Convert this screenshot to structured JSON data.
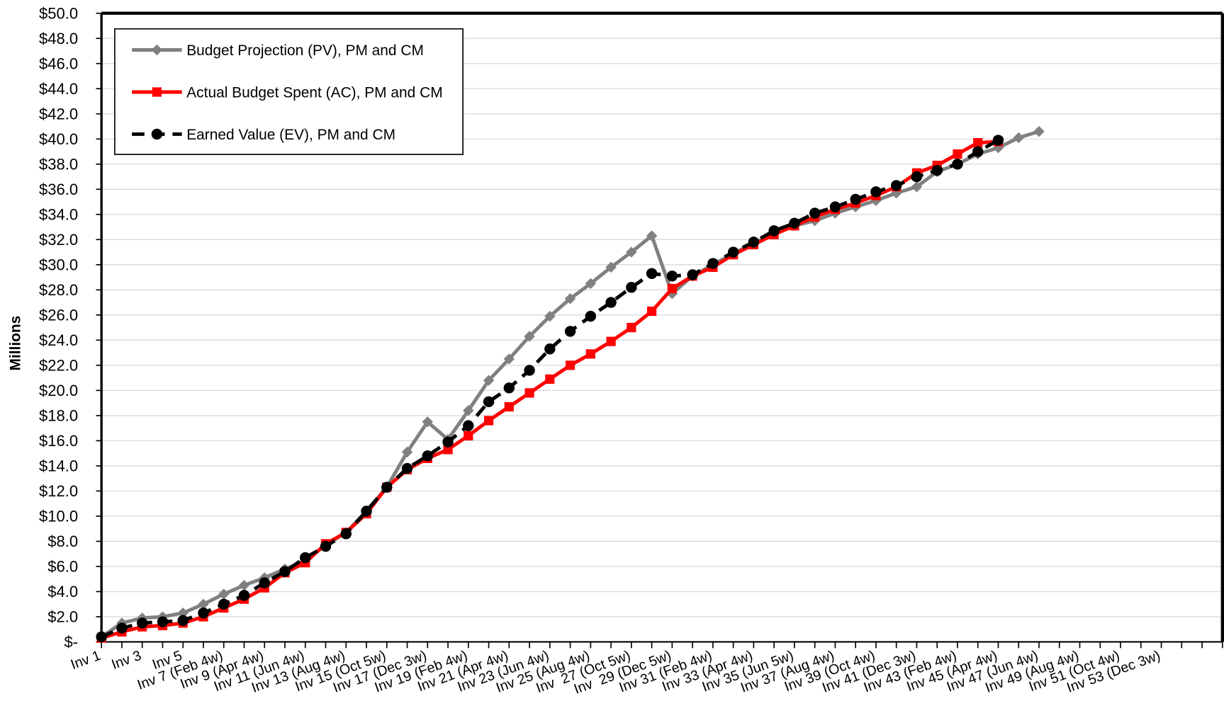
{
  "chart_data": {
    "type": "line",
    "y_label": "Millions",
    "categories": [
      "Inv 1",
      null,
      "Inv 3",
      null,
      "Inv 5",
      null,
      "Inv 7 (Feb 4w)",
      null,
      "Inv 9 (Apr 4w)",
      null,
      "Inv 11 (Jun 4w)",
      null,
      "Inv 13 (Aug 4w)",
      null,
      "Inv 15 (Oct 5w)",
      null,
      "Inv 17 (Dec 3w)",
      null,
      "Inv 19 (Feb 4w)",
      null,
      "Inv 21 (Apr 4w)",
      null,
      "Inv 23 (Jun 4w)",
      null,
      "Inv 25 (Aug 4w)",
      null,
      "Inv  27 (Oct 5w)",
      null,
      "Inv  29 (Dec 5w)",
      null,
      "Inv 31 (Feb 4w)",
      null,
      "Inv 33 (Apr 4w)",
      null,
      "Inv 35 (Jun 5w)",
      null,
      "Inv 37 (Aug 4w)",
      null,
      "Inv 39 (Oct 4w)",
      null,
      "Inv 41 (Dec 3w)",
      null,
      "Inv 43 (Feb 4w)",
      null,
      "Inv 45 (Apr 4w)",
      null,
      "Inv 47 (Jun 4w)",
      null,
      "Inv 49 (Aug 4w)",
      null,
      "Inv 51 (Oct 4w)",
      null,
      "Inv 53 (Dec 3w)",
      null,
      null,
      null
    ],
    "series": [
      {
        "name": "Budget Projection (PV), PM and CM",
        "color": "#808080",
        "marker": "diamond",
        "dash": false,
        "values": [
          0.4,
          1.5,
          1.9,
          2.0,
          2.3,
          3.0,
          3.8,
          4.5,
          5.1,
          5.8,
          6.4,
          7.7,
          8.7,
          10.4,
          12.3,
          15.1,
          17.5,
          16.1,
          18.4,
          20.8,
          22.5,
          24.3,
          25.9,
          27.3,
          28.5,
          29.8,
          31.0,
          32.3,
          27.7,
          29.1,
          30.0,
          30.9,
          31.7,
          32.5,
          33.1,
          33.5,
          34.1,
          34.6,
          35.1,
          35.7,
          36.2,
          37.4,
          38.0,
          38.8,
          39.3,
          40.1,
          40.6,
          null,
          null,
          null,
          null,
          null,
          null,
          null,
          null,
          null
        ]
      },
      {
        "name": "Actual Budget Spent (AC), PM and CM",
        "color": "#ff0000",
        "marker": "square",
        "dash": false,
        "values": [
          0.3,
          0.8,
          1.2,
          1.3,
          1.5,
          2.0,
          2.7,
          3.4,
          4.3,
          5.5,
          6.3,
          7.8,
          8.7,
          10.2,
          12.3,
          13.7,
          14.6,
          15.3,
          16.4,
          17.6,
          18.7,
          19.8,
          20.9,
          22.0,
          22.9,
          23.9,
          25.0,
          26.3,
          28.1,
          29.1,
          29.8,
          30.8,
          31.6,
          32.4,
          33.1,
          33.8,
          34.4,
          34.9,
          35.5,
          36.2,
          37.3,
          37.9,
          38.8,
          39.7,
          39.8,
          null,
          null,
          null,
          null,
          null,
          null,
          null,
          null,
          null,
          null,
          null
        ]
      },
      {
        "name": "Earned Value (EV), PM and CM",
        "color": "#000000",
        "marker": "circle",
        "dash": true,
        "values": [
          0.4,
          1.1,
          1.5,
          1.6,
          1.7,
          2.3,
          3.0,
          3.7,
          4.7,
          5.6,
          6.7,
          7.6,
          8.6,
          10.4,
          12.3,
          13.8,
          14.8,
          15.9,
          17.2,
          19.1,
          20.2,
          21.6,
          23.3,
          24.7,
          25.9,
          27.0,
          28.2,
          29.3,
          29.1,
          29.2,
          30.1,
          31.0,
          31.8,
          32.7,
          33.3,
          34.1,
          34.6,
          35.2,
          35.8,
          36.3,
          37.0,
          37.5,
          38.0,
          39.0,
          39.9,
          null,
          null,
          null,
          null,
          null,
          null,
          null,
          null,
          null,
          null,
          null
        ]
      }
    ],
    "ylim": [
      0,
      50
    ],
    "yticks": [
      {
        "value": 0,
        "label": "$-"
      },
      {
        "value": 2,
        "label": "$2.0"
      },
      {
        "value": 4,
        "label": "$4.0"
      },
      {
        "value": 6,
        "label": "$6.0"
      },
      {
        "value": 8,
        "label": "$8.0"
      },
      {
        "value": 10,
        "label": "$10.0"
      },
      {
        "value": 12,
        "label": "$12.0"
      },
      {
        "value": 14,
        "label": "$14.0"
      },
      {
        "value": 16,
        "label": "$16.0"
      },
      {
        "value": 18,
        "label": "$18.0"
      },
      {
        "value": 20,
        "label": "$20.0"
      },
      {
        "value": 22,
        "label": "$22.0"
      },
      {
        "value": 24,
        "label": "$24.0"
      },
      {
        "value": 26,
        "label": "$26.0"
      },
      {
        "value": 28,
        "label": "$28.0"
      },
      {
        "value": 30,
        "label": "$30.0"
      },
      {
        "value": 32,
        "label": "$32.0"
      },
      {
        "value": 34,
        "label": "$34.0"
      },
      {
        "value": 36,
        "label": "$36.0"
      },
      {
        "value": 38,
        "label": "$38.0"
      },
      {
        "value": 40,
        "label": "$40.0"
      },
      {
        "value": 42,
        "label": "$42.0"
      },
      {
        "value": 44,
        "label": "$44.0"
      },
      {
        "value": 46,
        "label": "$46.0"
      },
      {
        "value": 48,
        "label": "$48.0"
      },
      {
        "value": 50,
        "label": "$50.0"
      }
    ],
    "grid": true,
    "legend": "upper left"
  }
}
